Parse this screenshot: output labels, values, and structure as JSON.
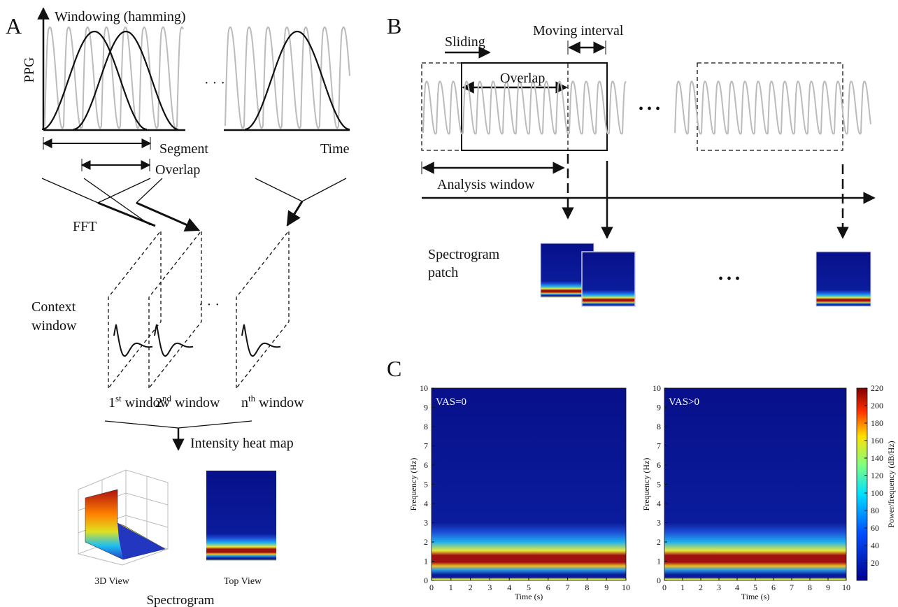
{
  "panel_a": {
    "label": "A",
    "title": "Windowing (hamming)",
    "y_axis": "PPG",
    "x_axis": "Time",
    "ellipsis": "· · ·",
    "segment": "Segment",
    "overlap": "Overlap",
    "fft": "FFT",
    "context_window": [
      "Context",
      "window"
    ],
    "ellipsis_2": "· · ·",
    "windows": [
      {
        "number": "1",
        "suffix": "st",
        "text": "window"
      },
      {
        "number": "2",
        "suffix": "nd",
        "text": "window"
      },
      {
        "number": "n",
        "suffix": "th",
        "text": "window"
      }
    ],
    "heat_map": "Intensity heat map",
    "views": [
      "3D View",
      "Top View"
    ],
    "caption": "Spectrogram"
  },
  "panel_b": {
    "label": "B",
    "sliding": "Sliding",
    "moving_interval": "Moving interval",
    "overlap": "Overlap",
    "ellipsis": "• • •",
    "analysis_window": "Analysis window",
    "spectrogram_patch": [
      "Spectrogram",
      "patch"
    ],
    "ellipsis_2": "• • •"
  },
  "panel_c": {
    "label": "C",
    "charts": [
      {
        "type": "heatmap",
        "annotation": "VAS=0",
        "xlabel": "Time (s)",
        "ylabel": "Frequency (Hz)",
        "xlim": [
          0,
          10
        ],
        "ylim": [
          0,
          10
        ],
        "xticks": [
          0,
          1,
          2,
          3,
          4,
          5,
          6,
          7,
          8,
          9,
          10
        ],
        "yticks": [
          0,
          1,
          2,
          3,
          4,
          5,
          6,
          7,
          8,
          9,
          10
        ]
      },
      {
        "type": "heatmap",
        "annotation": "VAS>0",
        "xlabel": "Time (s)",
        "ylabel": "Frequency (Hz)",
        "xlim": [
          0,
          10
        ],
        "ylim": [
          0,
          10
        ],
        "xticks": [
          0,
          1,
          2,
          3,
          4,
          5,
          6,
          7,
          8,
          9,
          10
        ],
        "yticks": [
          0,
          1,
          2,
          3,
          4,
          5,
          6,
          7,
          8,
          9,
          10
        ]
      }
    ],
    "colorbar": {
      "label": "Power/frequency (dB/Hz)",
      "lim": [
        0,
        220
      ],
      "ticks": [
        20,
        40,
        60,
        80,
        100,
        120,
        140,
        160,
        180,
        200,
        220
      ]
    }
  }
}
